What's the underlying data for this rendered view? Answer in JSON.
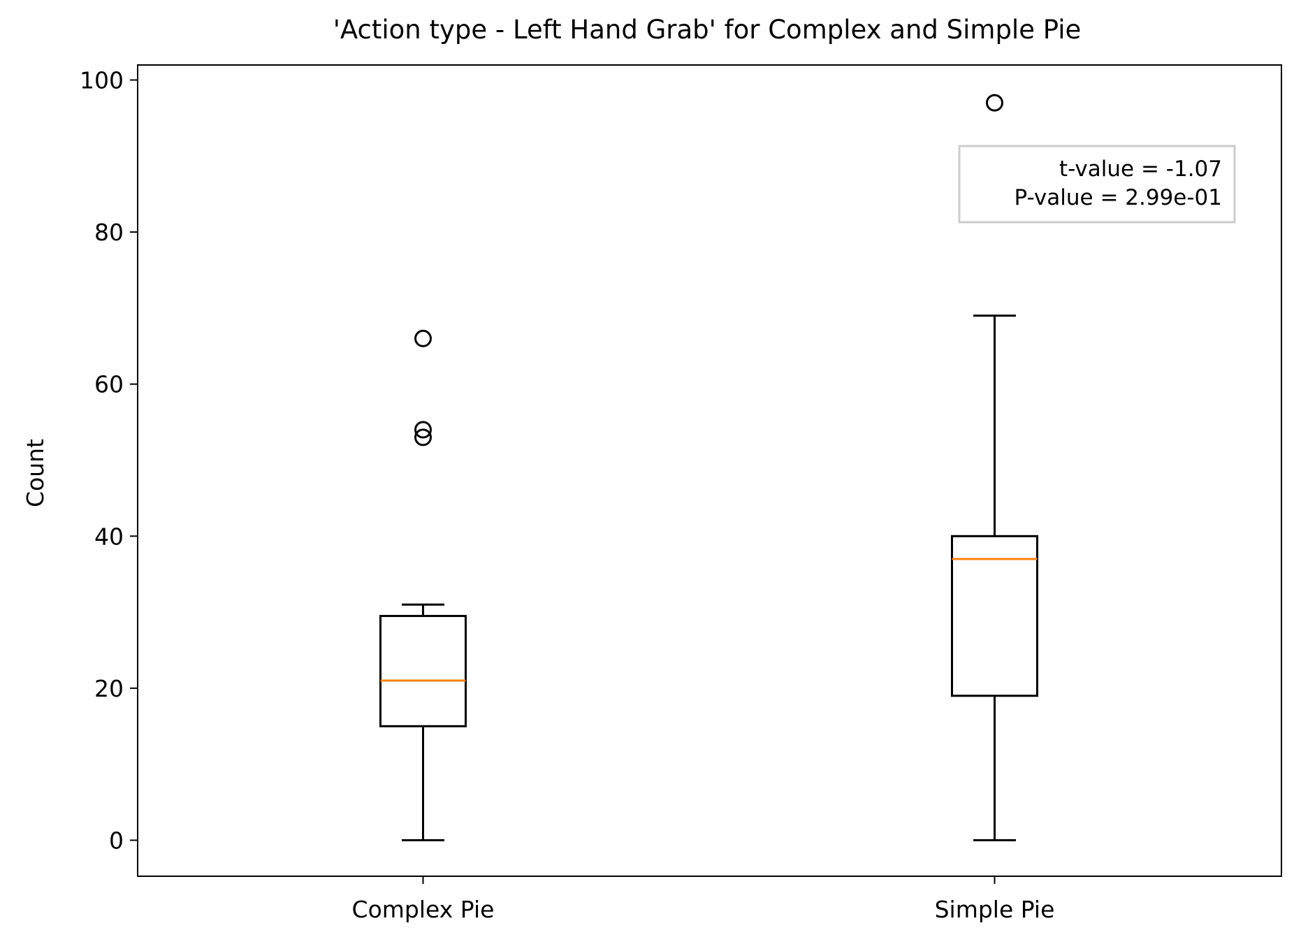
{
  "chart_data": {
    "type": "boxplot",
    "title": "'Action type - Left Hand Grab' for Complex and Simple Pie",
    "xlabel": "",
    "ylabel": "Count",
    "ylim": [
      -5,
      102
    ],
    "yticks": [
      0,
      20,
      40,
      60,
      80,
      100
    ],
    "categories": [
      "Complex Pie",
      "Simple Pie"
    ],
    "boxes": [
      {
        "label": "Complex Pie",
        "whisker_low": 0,
        "q1": 15,
        "median": 21,
        "q3": 29.5,
        "whisker_high": 31,
        "outliers": [
          53,
          54,
          66
        ]
      },
      {
        "label": "Simple Pie",
        "whisker_low": 0,
        "q1": 19,
        "median": 37,
        "q3": 40,
        "whisker_high": 69,
        "outliers": [
          97
        ]
      }
    ],
    "annotation": {
      "lines": [
        "t-value = -1.07",
        "P-value = 2.99e-01"
      ],
      "placement": "top-right"
    },
    "colors": {
      "box": "#000000",
      "median": "#ff7f0e",
      "annotation_border": "#cccccc"
    },
    "grid": false
  }
}
